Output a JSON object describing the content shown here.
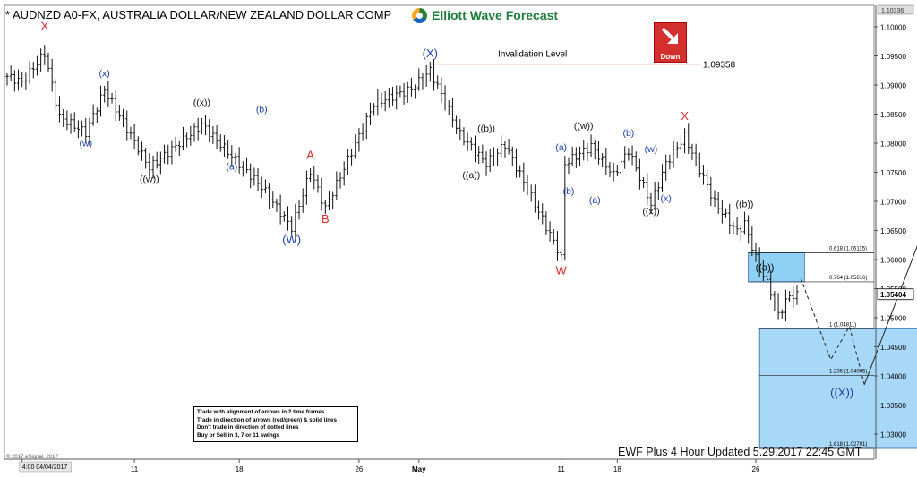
{
  "header": {
    "title": "* AUDNZD A0-FX, AUSTRALIA DOLLAR/NEW ZEALAND DOLLAR COMP",
    "logo_text": "Elliott Wave Forecast",
    "down_label": "Down",
    "top_right_value": "1.10336"
  },
  "notes": [
    "Trade with alignment of arrows in 2 time frames",
    "Trade in direction of arrows (red/green) & solid lines",
    "Don't trade in direction of dotted lines",
    "Buy or Sell in 3, 7 or 11 swings"
  ],
  "footer": {
    "updated": "EWF Plus 4 Hour Updated 5.29.2017 22:45 GMT",
    "copyright": "© 2017 eSignal, 2017"
  },
  "chart_data": {
    "type": "bar",
    "style": "ohlc",
    "title": "* AUDNZD A0-FX, AUSTRALIA DOLLAR/NEW ZEALAND DOLLAR COMP",
    "timeframe": "4 Hour",
    "ylim": [
      1.0265,
      1.1034
    ],
    "yticks": [
      "1.03000",
      "1.03500",
      "1.04000",
      "1.04500",
      "1.05000",
      "1.05500",
      "1.06000",
      "1.06500",
      "1.07000",
      "1.07500",
      "1.08000",
      "1.08500",
      "1.09000",
      "1.09500",
      "1.10000"
    ],
    "xticks": [
      {
        "label": "4:00 04/04/2017",
        "bar": 4
      },
      {
        "label": "11",
        "bar": 34
      },
      {
        "label": "18",
        "bar": 62
      },
      {
        "label": "26",
        "bar": 94
      },
      {
        "label": "May",
        "bar": 110
      },
      {
        "label": "11",
        "bar": 148
      },
      {
        "label": "18",
        "bar": 163
      },
      {
        "label": "26",
        "bar": 200
      }
    ],
    "last_price": "1.05404",
    "invalidation": {
      "label": "Invalidation Level",
      "value": 1.09358,
      "value_label": "1.09358"
    },
    "ohlc_anchors": [
      {
        "bar": 0,
        "price": 1.0915
      },
      {
        "bar": 4,
        "price": 1.0905
      },
      {
        "bar": 10,
        "price": 1.0955
      },
      {
        "bar": 14,
        "price": 1.0845
      },
      {
        "bar": 21,
        "price": 1.0818
      },
      {
        "bar": 26,
        "price": 1.0892
      },
      {
        "bar": 38,
        "price": 1.0758
      },
      {
        "bar": 52,
        "price": 1.0832
      },
      {
        "bar": 60,
        "price": 1.0778
      },
      {
        "bar": 68,
        "price": 1.0725
      },
      {
        "bar": 76,
        "price": 1.0655
      },
      {
        "bar": 81,
        "price": 1.0752
      },
      {
        "bar": 85,
        "price": 1.0688
      },
      {
        "bar": 98,
        "price": 1.0868
      },
      {
        "bar": 108,
        "price": 1.0893
      },
      {
        "bar": 113,
        "price": 1.0925
      },
      {
        "bar": 121,
        "price": 1.0815
      },
      {
        "bar": 128,
        "price": 1.0765
      },
      {
        "bar": 133,
        "price": 1.0798
      },
      {
        "bar": 147,
        "price": 1.0618
      },
      {
        "bar": 148,
        "price": 1.0602
      },
      {
        "bar": 149,
        "price": 1.0765
      },
      {
        "bar": 156,
        "price": 1.0795
      },
      {
        "bar": 162,
        "price": 1.0745
      },
      {
        "bar": 166,
        "price": 1.0788
      },
      {
        "bar": 172,
        "price": 1.0695
      },
      {
        "bar": 176,
        "price": 1.0765
      },
      {
        "bar": 181,
        "price": 1.0812
      },
      {
        "bar": 189,
        "price": 1.0698
      },
      {
        "bar": 195,
        "price": 1.0648
      },
      {
        "bar": 197,
        "price": 1.0662
      },
      {
        "bar": 200,
        "price": 1.0602
      },
      {
        "bar": 204,
        "price": 1.0545
      },
      {
        "bar": 206,
        "price": 1.0505
      },
      {
        "bar": 209,
        "price": 1.0538
      },
      {
        "bar": 211,
        "price": 1.0538
      }
    ],
    "fib_levels": [
      {
        "label": "0.618 (1.06115)",
        "value": 1.06115
      },
      {
        "label": "0.764 (1.05616)",
        "value": 1.05616
      },
      {
        "label": "1 (1.04811)",
        "value": 1.04811
      },
      {
        "label": "1.236 (1.04005)",
        "value": 1.04005
      },
      {
        "label": "1.618 (1.02701)",
        "value": 1.02701
      }
    ],
    "zones": [
      {
        "name": "zone-a",
        "bar_from": 198,
        "bar_to": 213,
        "y_from": 1.05616,
        "y_to": 1.06115,
        "label": "((a))"
      },
      {
        "name": "zone-main",
        "bar_from": 201,
        "bar_to": 245,
        "y_from": 1.02701,
        "y_to": 1.04811
      }
    ],
    "projection": {
      "dashed": [
        {
          "bar": 212,
          "price": 1.0568
        },
        {
          "bar": 220,
          "price": 1.0428
        },
        {
          "bar": 225,
          "price": 1.0485
        },
        {
          "bar": 229,
          "price": 1.0385
        }
      ],
      "solid": [
        {
          "bar": 229,
          "price": 1.0385
        },
        {
          "bar": 244,
          "price": 1.0638
        }
      ]
    },
    "wave_labels": [
      {
        "text": "X",
        "bar": 10,
        "price": 1.0995,
        "color": "red"
      },
      {
        "text": "(x)",
        "bar": 26,
        "price": 1.0915,
        "color": "blue"
      },
      {
        "text": "(w)",
        "bar": 21,
        "price": 1.0795,
        "color": "blue"
      },
      {
        "text": "((w))",
        "bar": 38,
        "price": 1.0733,
        "color": "black"
      },
      {
        "text": "((x))",
        "bar": 52,
        "price": 1.0865,
        "color": "black"
      },
      {
        "text": "(a)",
        "bar": 60,
        "price": 1.0755,
        "color": "blue"
      },
      {
        "text": "(b)",
        "bar": 68,
        "price": 1.0853,
        "color": "blue"
      },
      {
        "text": "(W)",
        "bar": 76,
        "price": 1.0628,
        "color": "blue"
      },
      {
        "text": "A",
        "bar": 81,
        "price": 1.0773,
        "color": "red"
      },
      {
        "text": "B",
        "bar": 85,
        "price": 1.0663,
        "color": "red"
      },
      {
        "text": "(X)",
        "bar": 113,
        "price": 1.0948,
        "color": "blue"
      },
      {
        "text": "((b))",
        "bar": 128,
        "price": 1.082,
        "color": "black"
      },
      {
        "text": "((a))",
        "bar": 124,
        "price": 1.074,
        "color": "black"
      },
      {
        "text": "W",
        "bar": 148,
        "price": 1.0575,
        "color": "red"
      },
      {
        "text": "(a)",
        "bar": 148,
        "price": 1.0788,
        "color": "blue"
      },
      {
        "text": "(b)",
        "bar": 150,
        "price": 1.0712,
        "color": "blue"
      },
      {
        "text": "((w))",
        "bar": 154,
        "price": 1.0825,
        "color": "black"
      },
      {
        "text": "(a)",
        "bar": 157,
        "price": 1.0697,
        "color": "blue"
      },
      {
        "text": "(b)",
        "bar": 166,
        "price": 1.0812,
        "color": "blue"
      },
      {
        "text": "(w)",
        "bar": 172,
        "price": 1.0785,
        "color": "blue"
      },
      {
        "text": "(x)",
        "bar": 176,
        "price": 1.07,
        "color": "blue"
      },
      {
        "text": "((x))",
        "bar": 172,
        "price": 1.0678,
        "color": "black"
      },
      {
        "text": "X",
        "bar": 181,
        "price": 1.084,
        "color": "red"
      },
      {
        "text": "((b))",
        "bar": 197,
        "price": 1.069,
        "color": "black"
      },
      {
        "text": "((X))",
        "bar": 223,
        "price": 1.0365,
        "color": "blue"
      }
    ]
  }
}
